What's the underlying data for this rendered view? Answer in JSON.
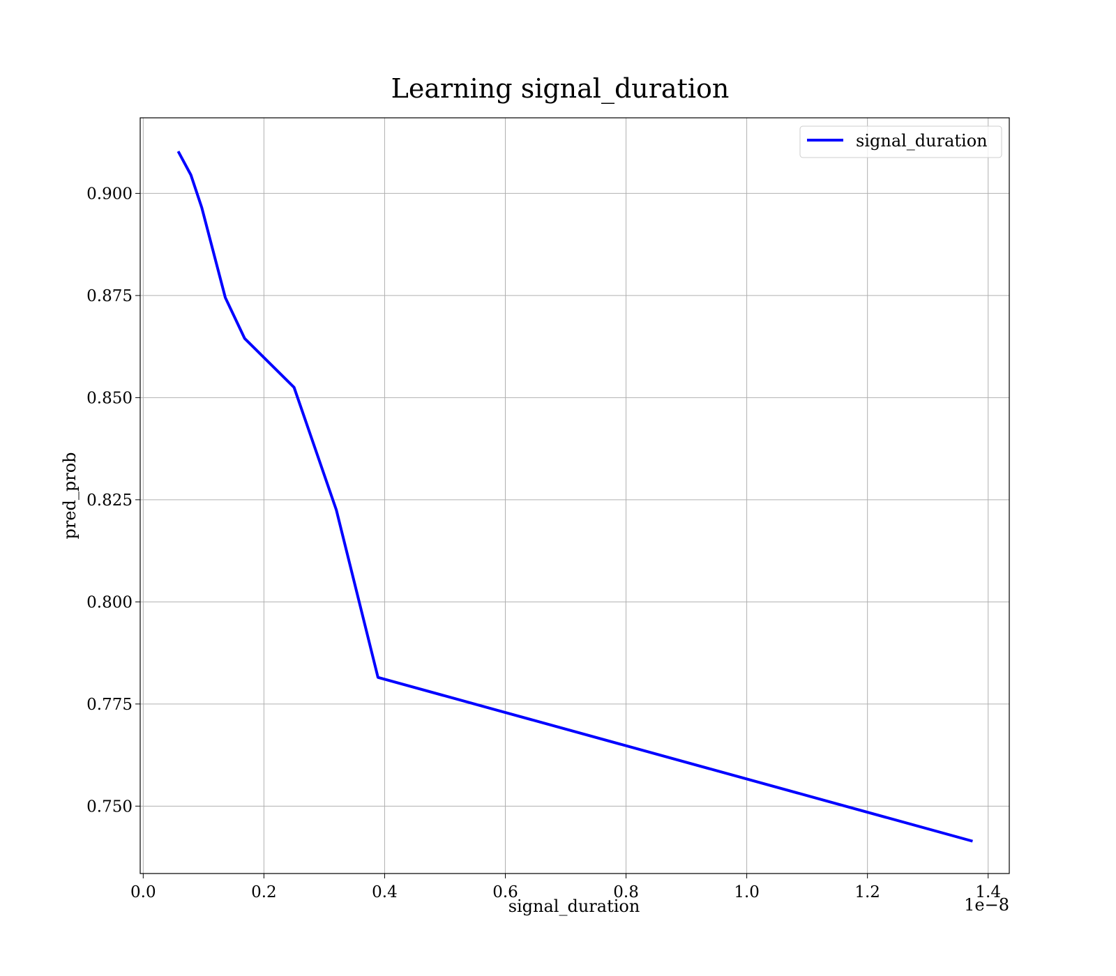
{
  "chart_data": {
    "type": "line",
    "title": "Learning signal_duration",
    "xlabel": "signal_duration",
    "ylabel": "pred_prob",
    "x_offset_label": "1e−8",
    "xlim": [
      -0.005,
      1.435
    ],
    "ylim": [
      0.7335,
      0.9185
    ],
    "x_ticks": [
      0.0,
      0.2,
      0.4,
      0.6,
      0.8,
      1.0,
      1.2,
      1.4
    ],
    "x_tick_labels": [
      "0.0",
      "0.2",
      "0.4",
      "0.6",
      "0.8",
      "1.0",
      "1.2",
      "1.4"
    ],
    "y_ticks": [
      0.75,
      0.775,
      0.8,
      0.825,
      0.85,
      0.875,
      0.9
    ],
    "y_tick_labels": [
      "0.750",
      "0.775",
      "0.800",
      "0.825",
      "0.850",
      "0.875",
      "0.900"
    ],
    "grid": true,
    "legend_position": "top-right",
    "series": [
      {
        "name": "signal_duration",
        "color": "#0000ff",
        "x": [
          0.059,
          0.079,
          0.097,
          0.136,
          0.168,
          0.25,
          0.32,
          0.389,
          1.372
        ],
        "y": [
          0.91,
          0.9045,
          0.8965,
          0.8745,
          0.8645,
          0.8525,
          0.8225,
          0.7815,
          0.7415
        ]
      }
    ]
  }
}
